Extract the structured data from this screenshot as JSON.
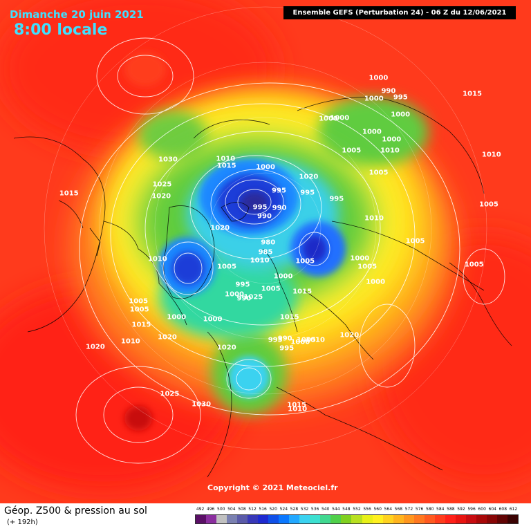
{
  "header": {
    "date": "Dimanche 20 juin 2021",
    "time": "8:00 locale",
    "run_info": "Ensemble GEFS  (Perturbation 24)  -  06 Z du 12/06/2021"
  },
  "copyright": "Copyright © 2021 Meteociel.fr",
  "footer": {
    "title": "Géop. Z500 & pression au sol",
    "forecast_hour": "(+ 192h)"
  },
  "legend": {
    "unit_levels": [
      "492",
      "496",
      "500",
      "504",
      "508",
      "512",
      "516",
      "520",
      "524",
      "528",
      "532",
      "536",
      "540",
      "544",
      "548",
      "552",
      "556",
      "560",
      "564",
      "568",
      "572",
      "576",
      "580",
      "584",
      "588",
      "592",
      "596",
      "600",
      "604",
      "608",
      "612"
    ],
    "colors": [
      "#5a0f66",
      "#8a2e9e",
      "#c0c0c0",
      "#7a80b0",
      "#5a5aa8",
      "#3838b8",
      "#1e2ad0",
      "#1050e8",
      "#0a78ff",
      "#22a8ff",
      "#3ad2f0",
      "#3ce0d0",
      "#40d890",
      "#50d04a",
      "#80d020",
      "#b8e020",
      "#e8f018",
      "#fff020",
      "#ffd220",
      "#ffb41e",
      "#ff961e",
      "#ff7820",
      "#ff5a20",
      "#ff3c1c",
      "#ff2018",
      "#e81410",
      "#c80c10",
      "#a80808",
      "#880606",
      "#620404",
      "#3a0202"
    ]
  },
  "isobars": [
    {
      "text": "1020",
      "lon": -100,
      "lat": 75
    },
    {
      "text": "1030",
      "lon": -135,
      "lat": 52
    },
    {
      "text": "1025",
      "lon": -123,
      "lat": 54
    },
    {
      "text": "1020",
      "lon": -117,
      "lat": 55
    },
    {
      "text": "1015",
      "lon": -158,
      "lat": 66
    },
    {
      "text": "1010",
      "lon": -160,
      "lat": 64
    },
    {
      "text": "1020",
      "lon": 130,
      "lat": 68
    },
    {
      "text": "1000",
      "lon": 140,
      "lat": 50
    },
    {
      "text": "1000",
      "lon": 136,
      "lat": 48
    },
    {
      "text": "1010",
      "lon": -84,
      "lat": 54
    },
    {
      "text": "995",
      "lon": 120,
      "lat": 72
    },
    {
      "text": "1000",
      "lon": 170,
      "lat": 70
    },
    {
      "text": "1005",
      "lon": -70,
      "lat": 44
    },
    {
      "text": "1005",
      "lon": -67,
      "lat": 43
    },
    {
      "text": "1000",
      "lon": -55,
      "lat": 50
    },
    {
      "text": "1000",
      "lon": -40,
      "lat": 56
    },
    {
      "text": "990",
      "lon": 175,
      "lat": 86
    },
    {
      "text": "995",
      "lon": -175,
      "lat": 83
    },
    {
      "text": "980",
      "lon": 0,
      "lat": 85
    },
    {
      "text": "985",
      "lon": -10,
      "lat": 82
    },
    {
      "text": "990",
      "lon": 135,
      "lat": 82
    },
    {
      "text": "995",
      "lon": 150,
      "lat": 77
    },
    {
      "text": "1005",
      "lon": -55,
      "lat": 72
    },
    {
      "text": "1000",
      "lon": -35,
      "lat": 66
    },
    {
      "text": "995",
      "lon": -32,
      "lat": 70
    },
    {
      "text": "990",
      "lon": -27,
      "lat": 66
    },
    {
      "text": "1010",
      "lon": -20,
      "lat": 79
    },
    {
      "text": "1005",
      "lon": 40,
      "lat": 73
    },
    {
      "text": "1005",
      "lon": -5,
      "lat": 70
    },
    {
      "text": "1000",
      "lon": 10,
      "lat": 73
    },
    {
      "text": "1015",
      "lon": 20,
      "lat": 66
    },
    {
      "text": "1025",
      "lon": -20,
      "lat": 67
    },
    {
      "text": "1015",
      "lon": 5,
      "lat": 60
    },
    {
      "text": "995",
      "lon": 102,
      "lat": 65
    },
    {
      "text": "1000",
      "lon": 62,
      "lat": 58
    },
    {
      "text": "1005",
      "lon": 59,
      "lat": 55
    },
    {
      "text": "1000",
      "lon": 54,
      "lat": 51
    },
    {
      "text": "1020",
      "lon": 28,
      "lat": 47
    },
    {
      "text": "1020",
      "lon": -28,
      "lat": 50
    },
    {
      "text": "1015",
      "lon": -62,
      "lat": 41
    },
    {
      "text": "1020",
      "lon": -52,
      "lat": 44
    },
    {
      "text": "1010",
      "lon": -60,
      "lat": 36
    },
    {
      "text": "1020",
      "lon": -65,
      "lat": 28
    },
    {
      "text": "1025",
      "lon": -40,
      "lat": 32
    },
    {
      "text": "1030",
      "lon": -30,
      "lat": 33
    },
    {
      "text": "995",
      "lon": -5,
      "lat": 54
    },
    {
      "text": "990",
      "lon": 0,
      "lat": 54
    },
    {
      "text": "995",
      "lon": 0,
      "lat": 51
    },
    {
      "text": "1000",
      "lon": 7,
      "lat": 52
    },
    {
      "text": "1005",
      "lon": 10,
      "lat": 52
    },
    {
      "text": "1010",
      "lon": 14,
      "lat": 51
    },
    {
      "text": "1010",
      "lon": 85,
      "lat": 55
    },
    {
      "text": "1005",
      "lon": 75,
      "lat": 43
    },
    {
      "text": "1005",
      "lon": 106,
      "lat": 50
    },
    {
      "text": "1010",
      "lon": 112,
      "lat": 44
    },
    {
      "text": "1005",
      "lon": 122,
      "lat": 53
    },
    {
      "text": "1000",
      "lon": 122,
      "lat": 45
    },
    {
      "text": "1000",
      "lon": 130,
      "lat": 38
    },
    {
      "text": "1000",
      "lon": 115,
      "lat": 42
    },
    {
      "text": "990",
      "lon": 128,
      "lat": 34
    },
    {
      "text": "1000",
      "lon": 120,
      "lat": 36
    },
    {
      "text": "995",
      "lon": 124,
      "lat": 33
    },
    {
      "text": "1000",
      "lon": 133,
      "lat": 33
    },
    {
      "text": "1005",
      "lon": 70,
      "lat": 27
    },
    {
      "text": "1005",
      "lon": 86,
      "lat": 24
    },
    {
      "text": "1010",
      "lon": 98,
      "lat": 21
    },
    {
      "text": "1015",
      "lon": -110,
      "lat": 30
    },
    {
      "text": "1015",
      "lon": 0,
      "lat": 35
    },
    {
      "text": "1010",
      "lon": 0,
      "lat": 34
    },
    {
      "text": "1015",
      "lon": 113,
      "lat": 19
    }
  ]
}
